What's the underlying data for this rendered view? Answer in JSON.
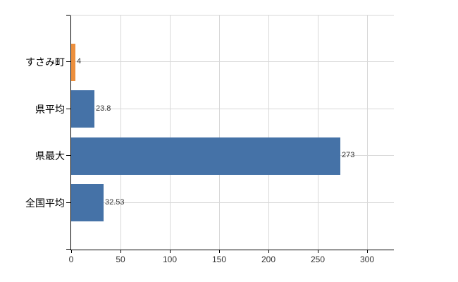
{
  "chart_data": {
    "type": "bar",
    "orientation": "horizontal",
    "categories": [
      "すさみ町",
      "県平均",
      "県最大",
      "全国平均"
    ],
    "values": [
      4,
      23.8,
      273,
      32.53
    ],
    "value_labels": [
      "4",
      "23.8",
      "273",
      "32.53"
    ],
    "x_ticks": [
      "0",
      "50",
      "100",
      "150",
      "200",
      "250",
      "300"
    ],
    "x_tick_values": [
      0,
      50,
      100,
      150,
      200,
      250,
      300
    ],
    "xlim": [
      0,
      327
    ],
    "grid": true,
    "legend_position": "none",
    "bar_colors": [
      "#EC8F3D",
      "#4572A7",
      "#4572A7",
      "#4572A7"
    ],
    "colors": {
      "highlight_bar": "#EC8F3D",
      "default_bar": "#4572A7",
      "grid": "#D8D8D8",
      "axis": "#000000",
      "value_label": "#333333",
      "category_label": "#000000"
    }
  }
}
